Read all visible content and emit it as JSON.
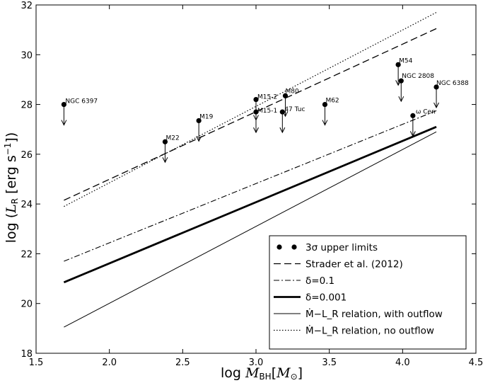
{
  "chart_data": {
    "type": "scatter",
    "xlabel": "log M_BH[M_⊙]",
    "ylabel": "log (L_R [erg s⁻¹])",
    "xlim": [
      1.5,
      4.5
    ],
    "ylim": [
      18,
      32
    ],
    "xticks": [
      "1.5",
      "2.0",
      "2.5",
      "3.0",
      "3.5",
      "4.0",
      "4.5"
    ],
    "yticks": [
      "18",
      "20",
      "22",
      "24",
      "26",
      "28",
      "30",
      "32"
    ],
    "grid": false,
    "legend_position": "bottom-right",
    "points": [
      {
        "name": "NGC 6397",
        "x": 1.69,
        "y": 28.0
      },
      {
        "name": "M22",
        "x": 2.38,
        "y": 26.5
      },
      {
        "name": "M19",
        "x": 2.61,
        "y": 27.35
      },
      {
        "name": "M15-2",
        "x": 3.0,
        "y": 28.2
      },
      {
        "name": "M15-1",
        "x": 3.0,
        "y": 27.7
      },
      {
        "name": "M80",
        "x": 3.2,
        "y": 28.35
      },
      {
        "name": "47 Tuc",
        "x": 3.18,
        "y": 27.7
      },
      {
        "name": "M62",
        "x": 3.47,
        "y": 28.0
      },
      {
        "name": "M54",
        "x": 3.97,
        "y": 29.6
      },
      {
        "name": "NGC 2808",
        "x": 3.99,
        "y": 28.95
      },
      {
        "name": "NGC 6388",
        "x": 4.23,
        "y": 28.7
      },
      {
        "name": "ω Cen",
        "x": 4.07,
        "y": 27.55
      }
    ],
    "series": [
      {
        "name": "Strader et al. (2012)",
        "style": "dashed",
        "x": [
          1.69,
          4.23
        ],
        "y": [
          24.15,
          31.05
        ]
      },
      {
        "name": "δ=0.1",
        "style": "dashdot",
        "x": [
          1.69,
          4.23
        ],
        "y": [
          21.7,
          27.75
        ]
      },
      {
        "name": "δ=0.001",
        "style": "thick",
        "x": [
          1.69,
          4.23
        ],
        "y": [
          20.85,
          27.1
        ]
      },
      {
        "name": "Ṁ−L_R relation, with outflow",
        "style": "thin",
        "x": [
          1.69,
          4.23
        ],
        "y": [
          19.05,
          26.9
        ]
      },
      {
        "name": "Ṁ−L_R relation, no outflow",
        "style": "dotted",
        "x": [
          1.69,
          4.23
        ],
        "y": [
          23.9,
          31.7
        ]
      }
    ],
    "legend": [
      {
        "label": "3σ upper limits",
        "symbol": "points"
      },
      {
        "label": "Strader et al. (2012)",
        "symbol": "dashed"
      },
      {
        "label": "δ=0.1",
        "symbol": "dashdot"
      },
      {
        "label": "δ=0.001",
        "symbol": "thick"
      },
      {
        "label": "Ṁ−L_R relation, with outflow",
        "symbol": "thin"
      },
      {
        "label": "Ṁ−L_R relation, no outflow",
        "symbol": "dotted"
      }
    ],
    "colors": {
      "ink": "#000000",
      "background": "#ffffff"
    }
  }
}
